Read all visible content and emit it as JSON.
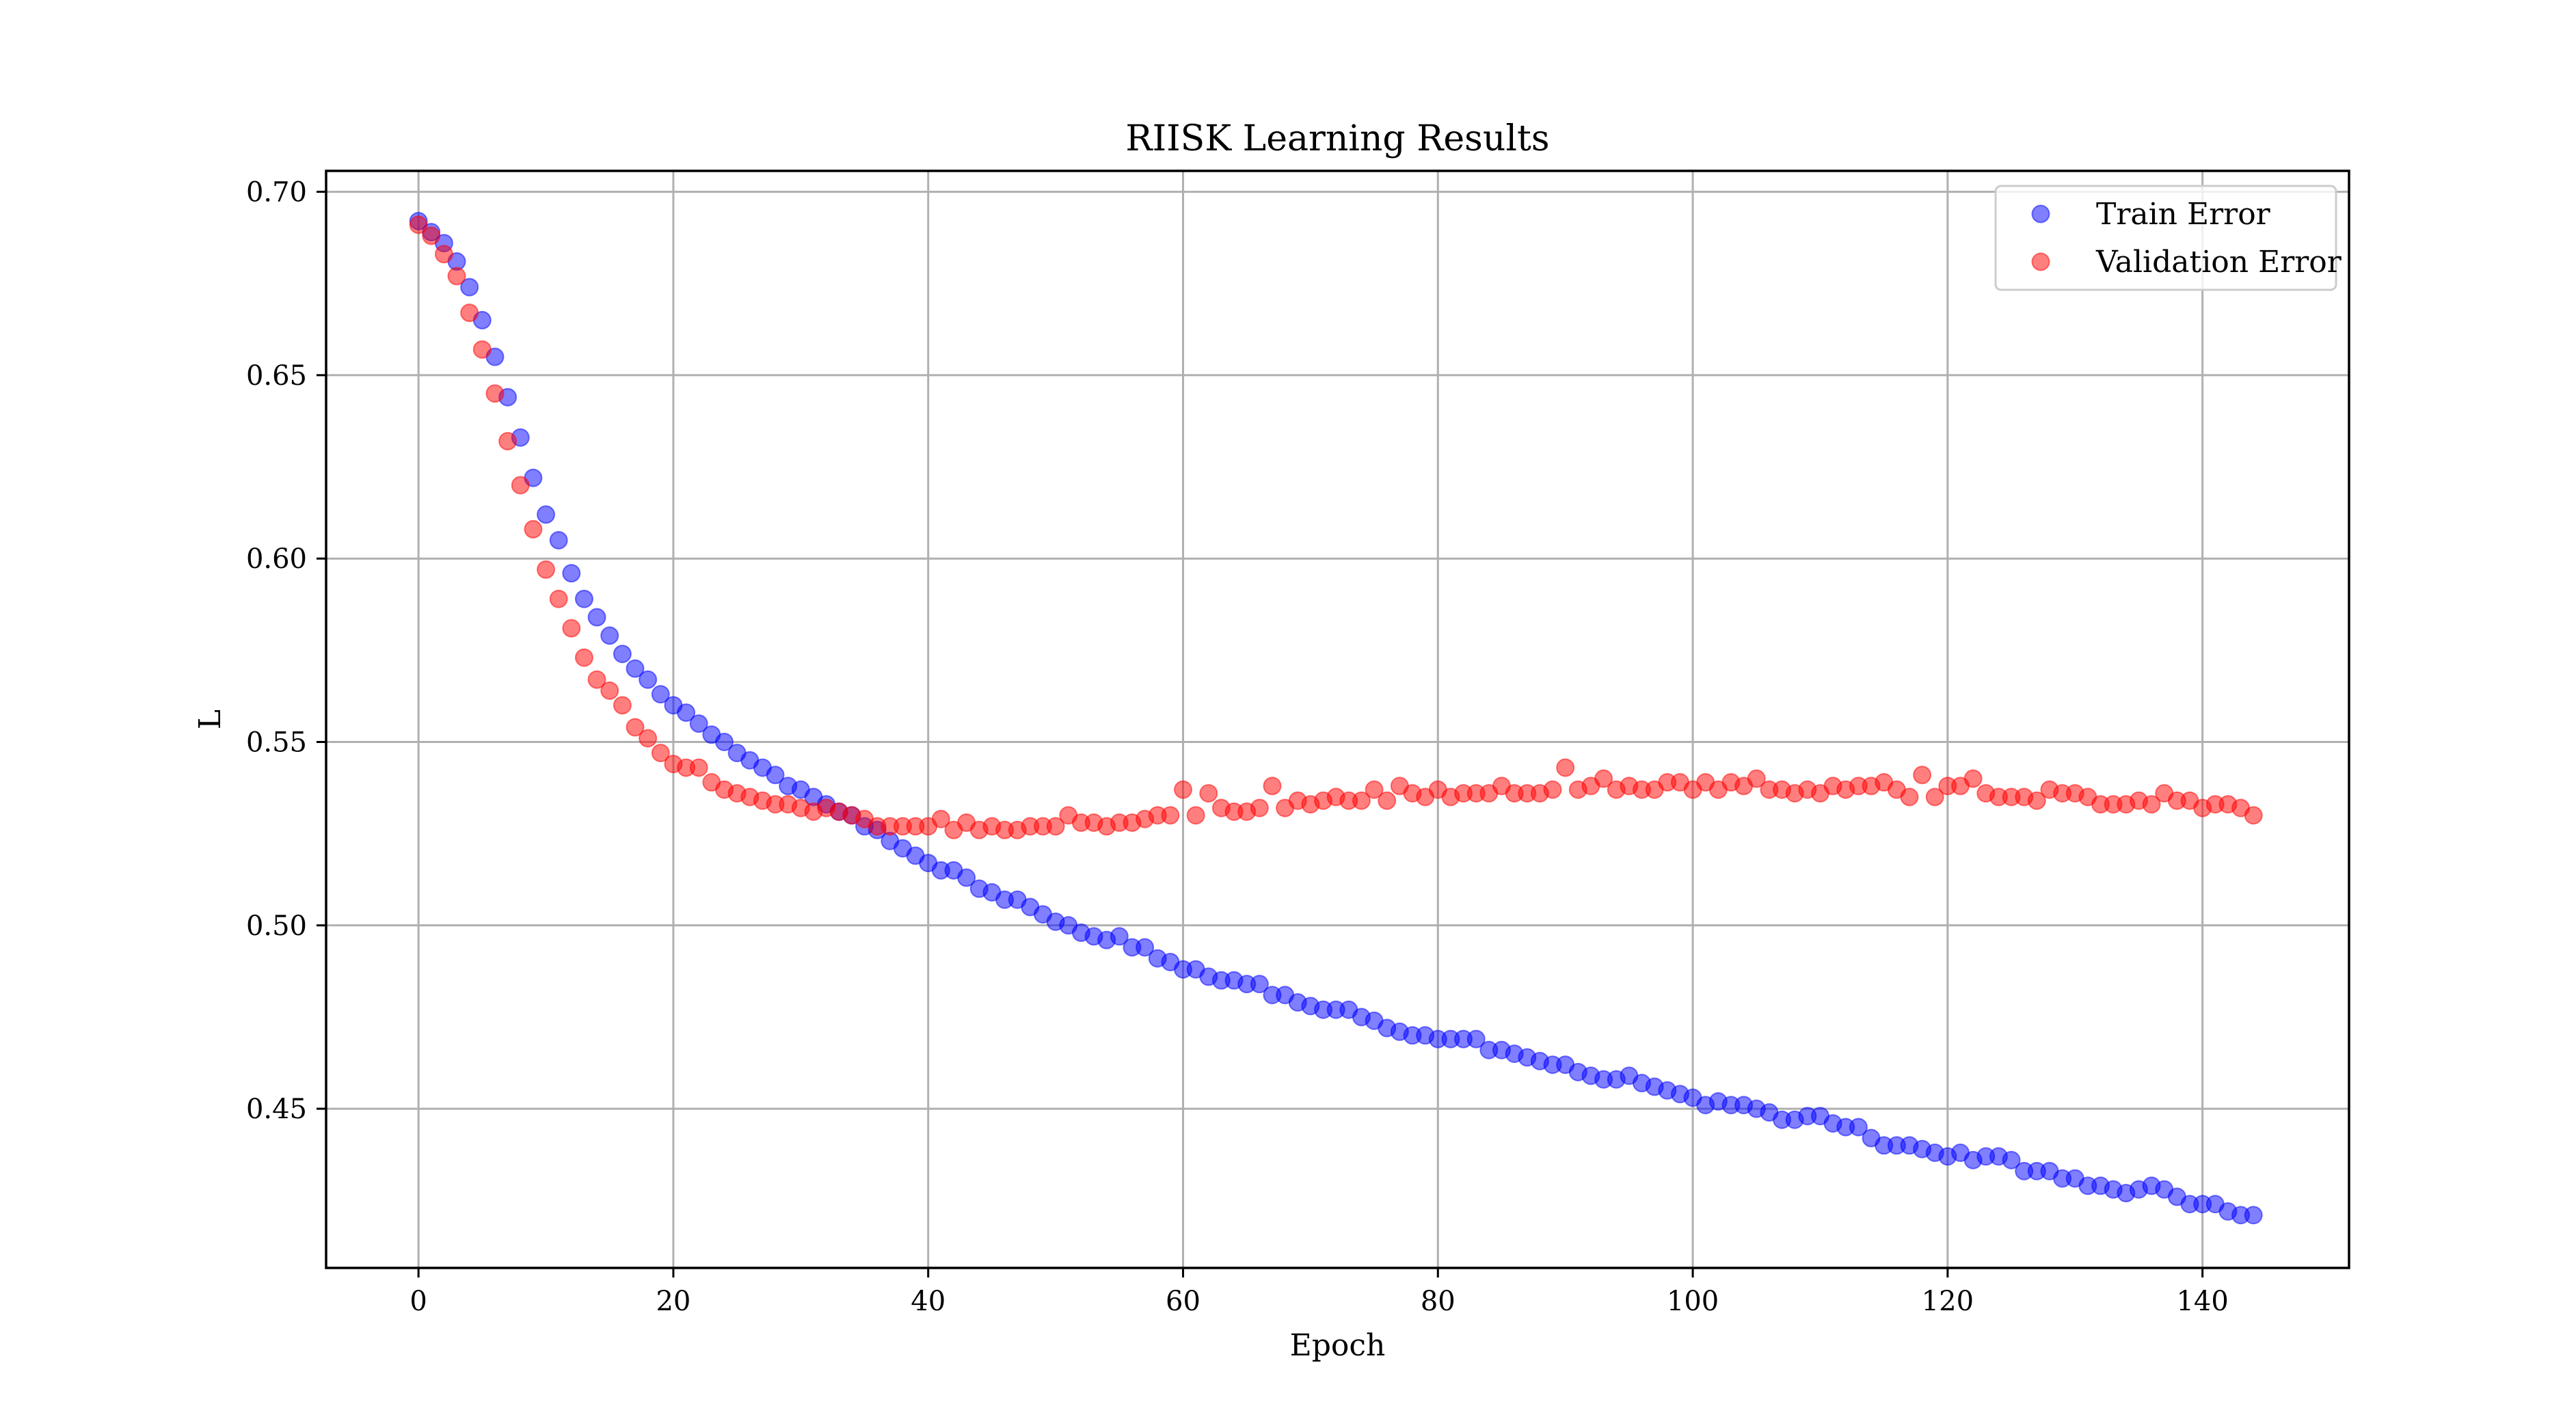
{
  "chart_data": {
    "type": "scatter",
    "title": "RIISK Learning Results",
    "xlabel": "Epoch",
    "ylabel": "L",
    "xlim": [
      -7.25,
      151.5
    ],
    "ylim": [
      0.4066,
      0.7057
    ],
    "xticks": [
      0,
      20,
      40,
      60,
      80,
      100,
      120,
      140
    ],
    "yticks": [
      0.45,
      0.5,
      0.55,
      0.6,
      0.65,
      0.7
    ],
    "ytick_labels": [
      "0.45",
      "0.50",
      "0.55",
      "0.60",
      "0.65",
      "0.70"
    ],
    "grid": true,
    "legend": {
      "position": "top-right"
    },
    "series": [
      {
        "name": "Train Error",
        "color": "#0000ff",
        "opacity": 0.5,
        "x": [
          0,
          1,
          2,
          3,
          4,
          5,
          6,
          7,
          8,
          9,
          10,
          11,
          12,
          13,
          14,
          15,
          16,
          17,
          18,
          19,
          20,
          21,
          22,
          23,
          24,
          25,
          26,
          27,
          28,
          29,
          30,
          31,
          32,
          33,
          34,
          35,
          36,
          37,
          38,
          39,
          40,
          41,
          42,
          43,
          44,
          45,
          46,
          47,
          48,
          49,
          50,
          51,
          52,
          53,
          54,
          55,
          56,
          57,
          58,
          59,
          60,
          61,
          62,
          63,
          64,
          65,
          66,
          67,
          68,
          69,
          70,
          71,
          72,
          73,
          74,
          75,
          76,
          77,
          78,
          79,
          80,
          81,
          82,
          83,
          84,
          85,
          86,
          87,
          88,
          89,
          90,
          91,
          92,
          93,
          94,
          95,
          96,
          97,
          98,
          99,
          100,
          101,
          102,
          103,
          104,
          105,
          106,
          107,
          108,
          109,
          110,
          111,
          112,
          113,
          114,
          115,
          116,
          117,
          118,
          119,
          120,
          121,
          122,
          123,
          124,
          125,
          126,
          127,
          128,
          129,
          130,
          131,
          132,
          133,
          134,
          135,
          136,
          137,
          138,
          139,
          140,
          141,
          142,
          143,
          144
        ],
        "y": [
          0.692,
          0.689,
          0.686,
          0.681,
          0.674,
          0.665,
          0.655,
          0.644,
          0.633,
          0.622,
          0.612,
          0.605,
          0.596,
          0.589,
          0.584,
          0.579,
          0.574,
          0.57,
          0.567,
          0.563,
          0.56,
          0.558,
          0.555,
          0.552,
          0.55,
          0.547,
          0.545,
          0.543,
          0.541,
          0.538,
          0.537,
          0.535,
          0.533,
          0.531,
          0.53,
          0.527,
          0.526,
          0.523,
          0.521,
          0.519,
          0.517,
          0.515,
          0.515,
          0.513,
          0.51,
          0.509,
          0.507,
          0.507,
          0.505,
          0.503,
          0.501,
          0.5,
          0.498,
          0.497,
          0.496,
          0.497,
          0.494,
          0.494,
          0.491,
          0.49,
          0.488,
          0.488,
          0.486,
          0.485,
          0.485,
          0.484,
          0.484,
          0.481,
          0.481,
          0.479,
          0.478,
          0.477,
          0.477,
          0.477,
          0.475,
          0.474,
          0.472,
          0.471,
          0.47,
          0.47,
          0.469,
          0.469,
          0.469,
          0.469,
          0.466,
          0.466,
          0.465,
          0.464,
          0.463,
          0.462,
          0.462,
          0.46,
          0.459,
          0.458,
          0.458,
          0.459,
          0.457,
          0.456,
          0.455,
          0.454,
          0.453,
          0.451,
          0.452,
          0.451,
          0.451,
          0.45,
          0.449,
          0.447,
          0.447,
          0.448,
          0.448,
          0.446,
          0.445,
          0.445,
          0.442,
          0.44,
          0.44,
          0.44,
          0.439,
          0.438,
          0.437,
          0.438,
          0.436,
          0.437,
          0.437,
          0.436,
          0.433,
          0.433,
          0.433,
          0.431,
          0.431,
          0.429,
          0.429,
          0.428,
          0.427,
          0.428,
          0.429,
          0.428,
          0.426,
          0.424,
          0.424,
          0.424,
          0.422,
          0.421,
          0.421
        ]
      },
      {
        "name": "Validation Error",
        "color": "#ff0000",
        "opacity": 0.5,
        "x": [
          0,
          1,
          2,
          3,
          4,
          5,
          6,
          7,
          8,
          9,
          10,
          11,
          12,
          13,
          14,
          15,
          16,
          17,
          18,
          19,
          20,
          21,
          22,
          23,
          24,
          25,
          26,
          27,
          28,
          29,
          30,
          31,
          32,
          33,
          34,
          35,
          36,
          37,
          38,
          39,
          40,
          41,
          42,
          43,
          44,
          45,
          46,
          47,
          48,
          49,
          50,
          51,
          52,
          53,
          54,
          55,
          56,
          57,
          58,
          59,
          60,
          61,
          62,
          63,
          64,
          65,
          66,
          67,
          68,
          69,
          70,
          71,
          72,
          73,
          74,
          75,
          76,
          77,
          78,
          79,
          80,
          81,
          82,
          83,
          84,
          85,
          86,
          87,
          88,
          89,
          90,
          91,
          92,
          93,
          94,
          95,
          96,
          97,
          98,
          99,
          100,
          101,
          102,
          103,
          104,
          105,
          106,
          107,
          108,
          109,
          110,
          111,
          112,
          113,
          114,
          115,
          116,
          117,
          118,
          119,
          120,
          121,
          122,
          123,
          124,
          125,
          126,
          127,
          128,
          129,
          130,
          131,
          132,
          133,
          134,
          135,
          136,
          137,
          138,
          139,
          140,
          141,
          142,
          143,
          144
        ],
        "y": [
          0.691,
          0.688,
          0.683,
          0.677,
          0.667,
          0.657,
          0.645,
          0.632,
          0.62,
          0.608,
          0.597,
          0.589,
          0.581,
          0.573,
          0.567,
          0.564,
          0.56,
          0.554,
          0.551,
          0.547,
          0.544,
          0.543,
          0.543,
          0.539,
          0.537,
          0.536,
          0.535,
          0.534,
          0.533,
          0.533,
          0.532,
          0.531,
          0.532,
          0.531,
          0.53,
          0.529,
          0.527,
          0.527,
          0.527,
          0.527,
          0.527,
          0.529,
          0.526,
          0.528,
          0.526,
          0.527,
          0.526,
          0.526,
          0.527,
          0.527,
          0.527,
          0.53,
          0.528,
          0.528,
          0.527,
          0.528,
          0.528,
          0.529,
          0.53,
          0.53,
          0.537,
          0.53,
          0.536,
          0.532,
          0.531,
          0.531,
          0.532,
          0.538,
          0.532,
          0.534,
          0.533,
          0.534,
          0.535,
          0.534,
          0.534,
          0.537,
          0.534,
          0.538,
          0.536,
          0.535,
          0.537,
          0.535,
          0.536,
          0.536,
          0.536,
          0.538,
          0.536,
          0.536,
          0.536,
          0.537,
          0.543,
          0.537,
          0.538,
          0.54,
          0.537,
          0.538,
          0.537,
          0.537,
          0.539,
          0.539,
          0.537,
          0.539,
          0.537,
          0.539,
          0.538,
          0.54,
          0.537,
          0.537,
          0.536,
          0.537,
          0.536,
          0.538,
          0.537,
          0.538,
          0.538,
          0.539,
          0.537,
          0.535,
          0.541,
          0.535,
          0.538,
          0.538,
          0.54,
          0.536,
          0.535,
          0.535,
          0.535,
          0.534,
          0.537,
          0.536,
          0.536,
          0.535,
          0.533,
          0.533,
          0.533,
          0.534,
          0.533,
          0.536,
          0.534,
          0.534,
          0.532,
          0.533,
          0.533,
          0.532,
          0.53
        ]
      }
    ]
  }
}
